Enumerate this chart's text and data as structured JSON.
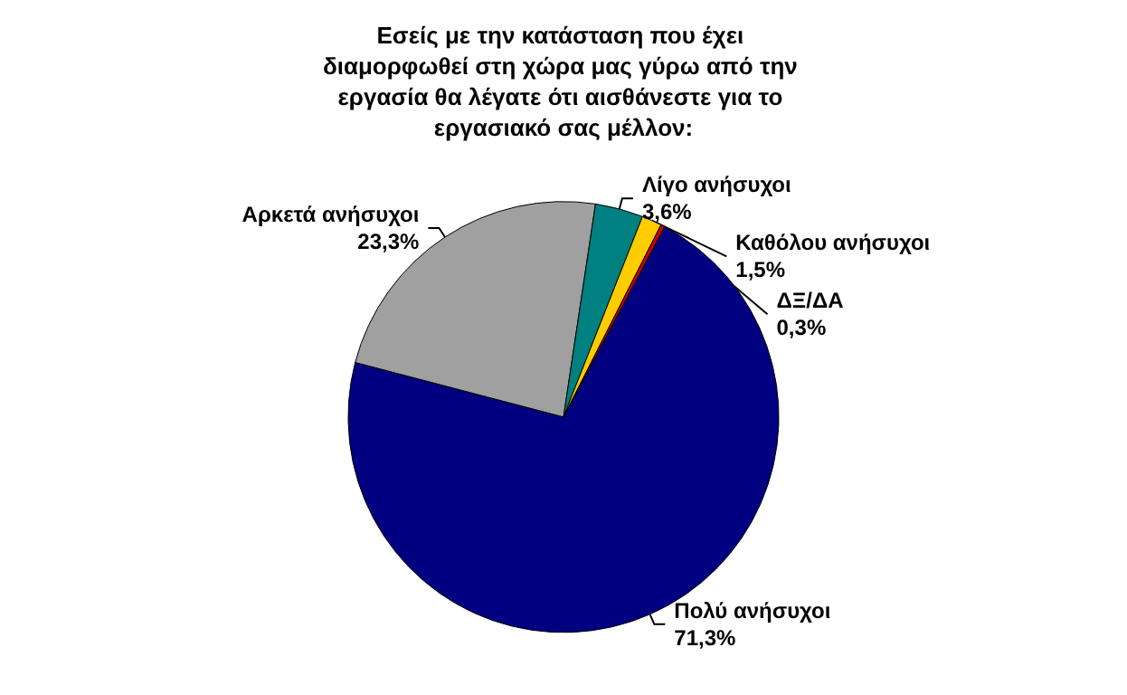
{
  "chart_data": {
    "type": "pie",
    "title": "Εσείς με την κατάσταση που έχει διαμορφωθεί στη χώρα μας γύρω από την εργασία θα λέγατε ότι αισθάνεστε για το εργασιακό σας μέλλον:",
    "categories": [
      "Πολύ ανήσυχοι",
      "Αρκετά ανήσυχοι",
      "Λίγο ανήσυχοι",
      "Καθόλου ανήσυχοι",
      "ΔΞ/ΔΑ"
    ],
    "values": [
      71.3,
      23.3,
      3.6,
      1.5,
      0.3
    ],
    "colors": [
      "#000080",
      "#a0a0a0",
      "#008080",
      "#ffcc00",
      "#cc0000"
    ],
    "value_labels": [
      "71,3%",
      "23,3%",
      "3,6%",
      "1,5%",
      "0,3%"
    ]
  }
}
